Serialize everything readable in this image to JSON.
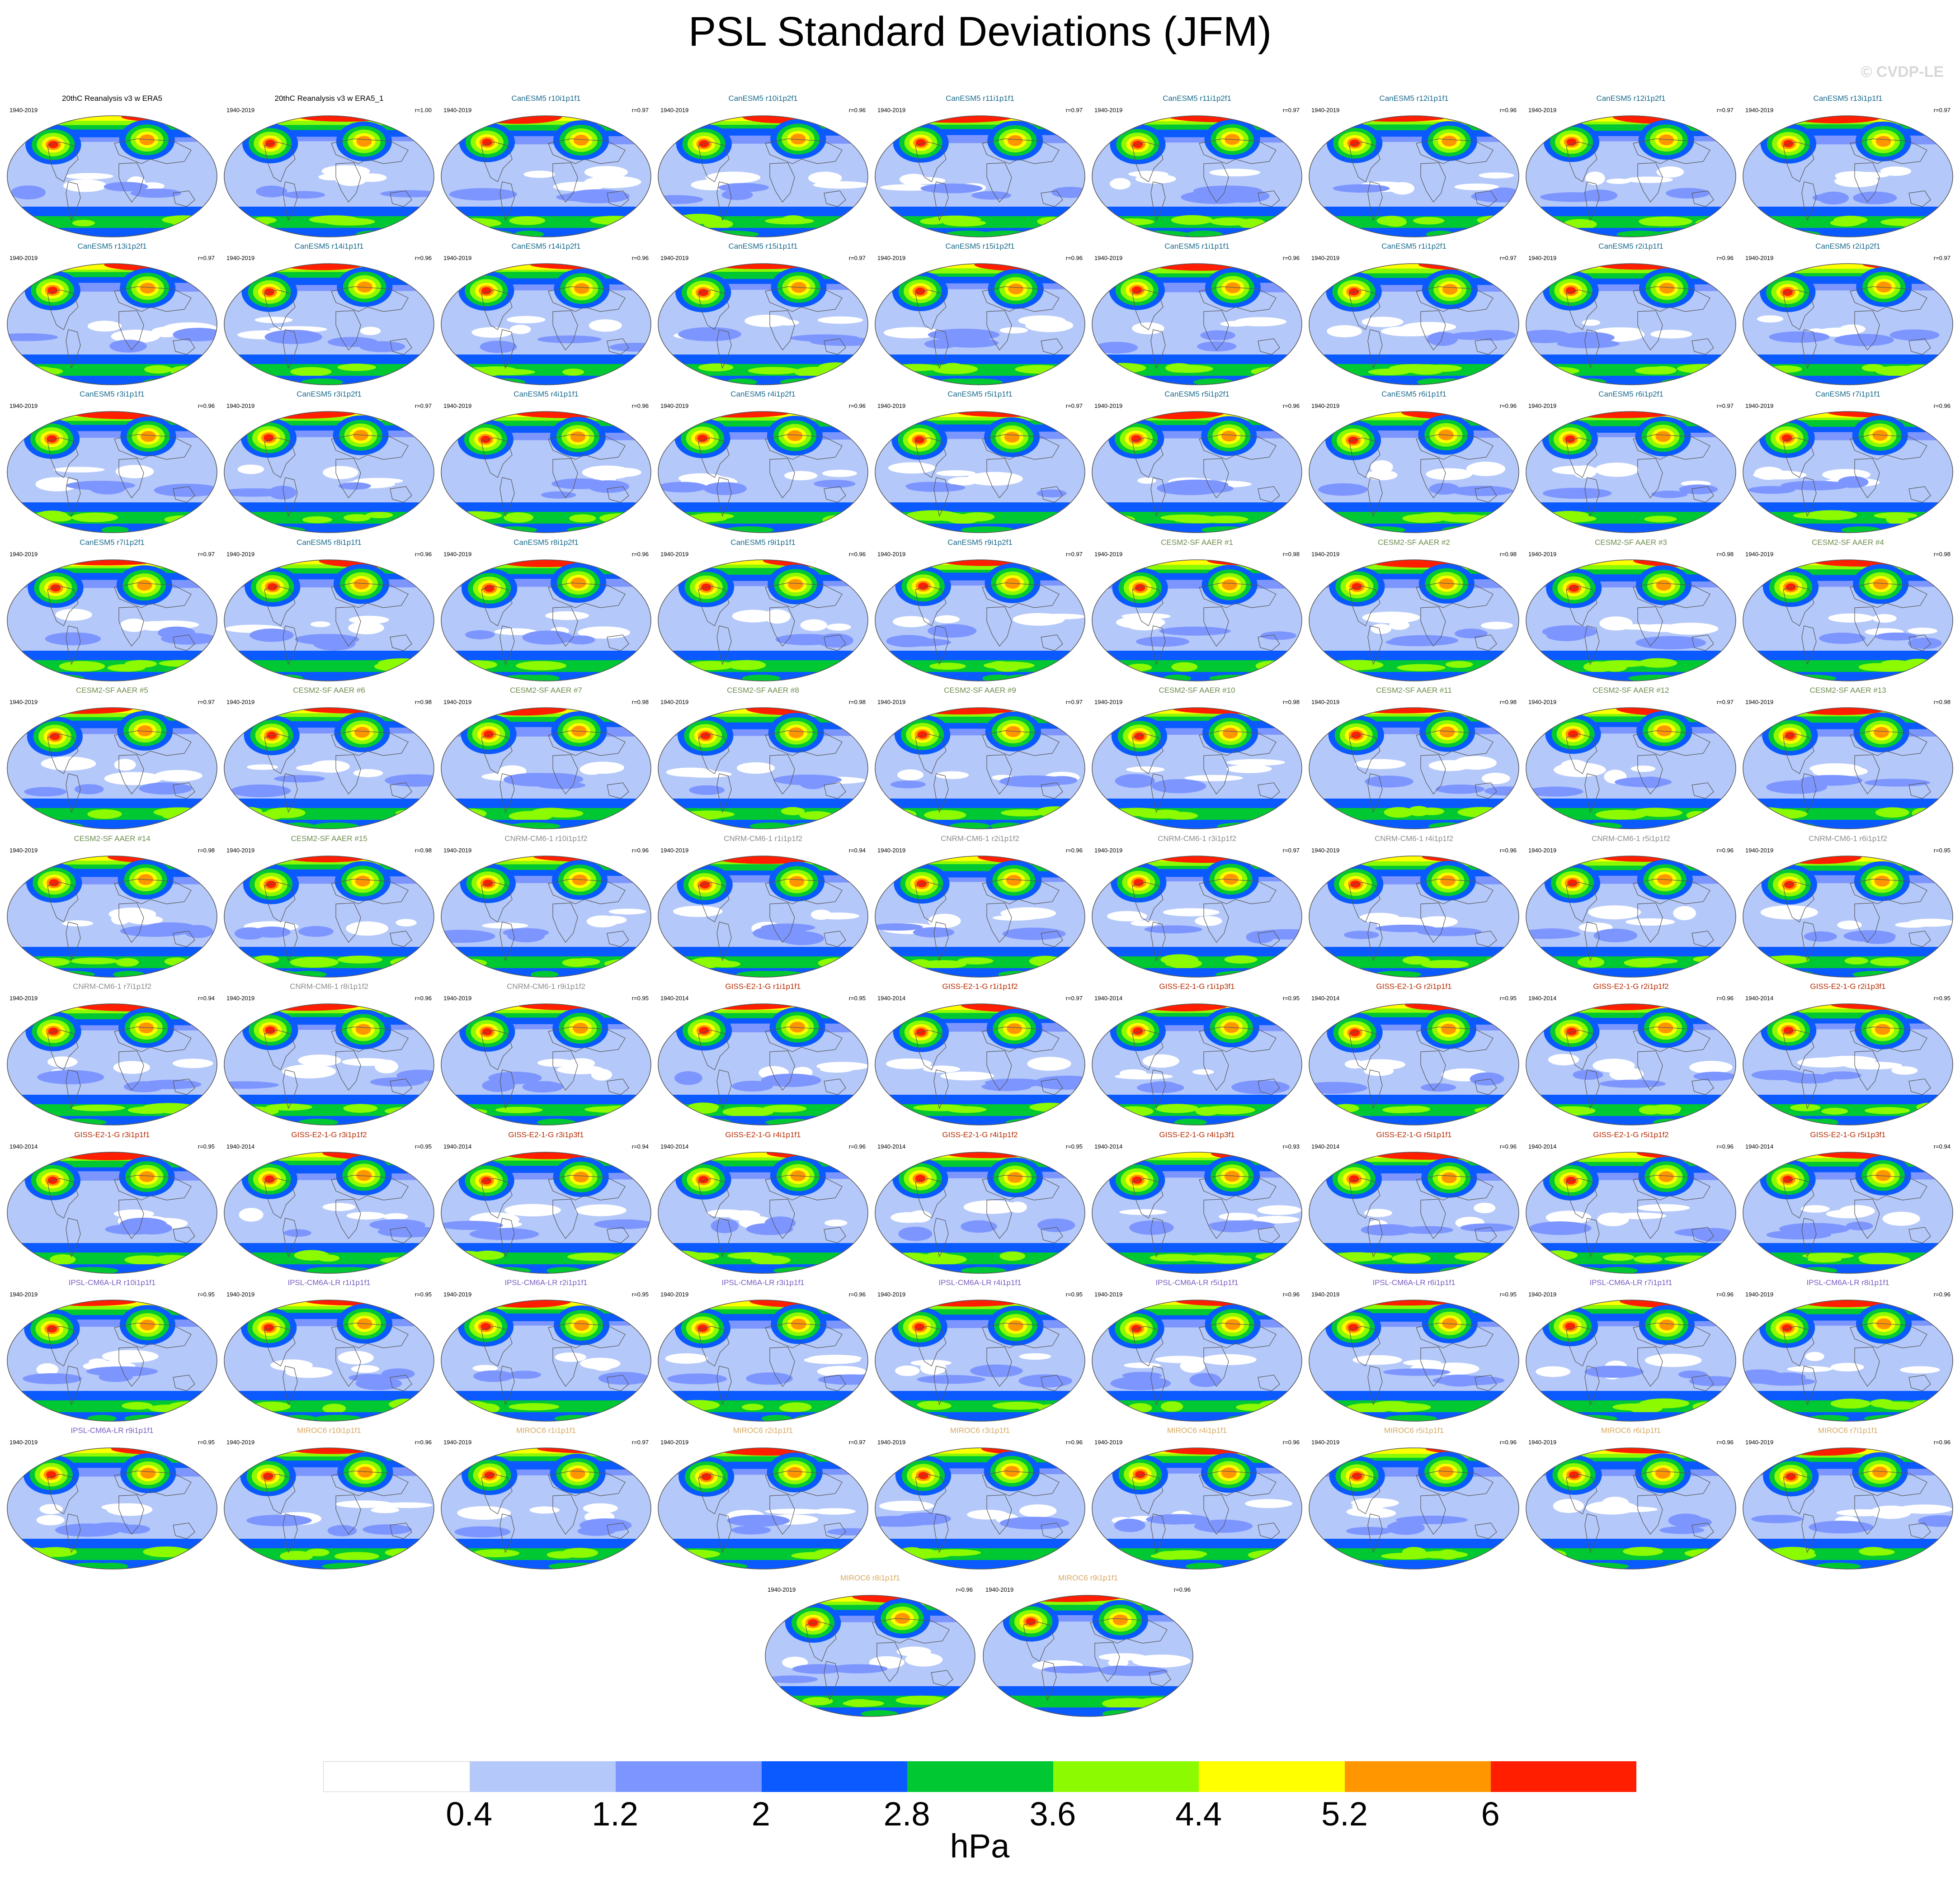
{
  "title": "PSL Standard Deviations (JFM)",
  "watermark": "© CVDP-LE",
  "units": "hPa",
  "colors": {
    "legend": [
      "#ffffff",
      "#b4c8fa",
      "#7d96ff",
      "#0a5aff",
      "#00c832",
      "#8cfa00",
      "#ffff00",
      "#ff9600",
      "#ff1e00"
    ],
    "land_outline": "#555555",
    "globe_outline": "#555555",
    "group_titles": {
      "obs": "#000000",
      "CanESM5": "#1a6a8c",
      "CESM2-SF AAER": "#6c8c4c",
      "CNRM-CM6-1": "#8c8c8c",
      "GISS-E2-1-G": "#b42a00",
      "IPSL-CM6A-LR": "#7a5cc0",
      "MIROC6": "#d8a860"
    }
  },
  "colorbar": {
    "levels": [
      "0.4",
      "1.2",
      "2",
      "2.8",
      "3.6",
      "4.4",
      "5.2",
      "6"
    ]
  },
  "panels": [
    {
      "title": "20thC Reanalysis v3 w ERA5",
      "group": "obs",
      "years": "1940-2019",
      "corr": ""
    },
    {
      "title": "20thC Reanalysis v3 w ERA5_1",
      "group": "obs",
      "years": "1940-2019",
      "corr": "r=1.00"
    },
    {
      "title": "CanESM5 r10i1p1f1",
      "group": "CanESM5",
      "years": "1940-2019",
      "corr": "r=0.97"
    },
    {
      "title": "CanESM5 r10i1p2f1",
      "group": "CanESM5",
      "years": "1940-2019",
      "corr": "r=0.96"
    },
    {
      "title": "CanESM5 r11i1p1f1",
      "group": "CanESM5",
      "years": "1940-2019",
      "corr": "r=0.97"
    },
    {
      "title": "CanESM5 r11i1p2f1",
      "group": "CanESM5",
      "years": "1940-2019",
      "corr": "r=0.97"
    },
    {
      "title": "CanESM5 r12i1p1f1",
      "group": "CanESM5",
      "years": "1940-2019",
      "corr": "r=0.96"
    },
    {
      "title": "CanESM5 r12i1p2f1",
      "group": "CanESM5",
      "years": "1940-2019",
      "corr": "r=0.97"
    },
    {
      "title": "CanESM5 r13i1p1f1",
      "group": "CanESM5",
      "years": "1940-2019",
      "corr": "r=0.97"
    },
    {
      "title": "CanESM5 r13i1p2f1",
      "group": "CanESM5",
      "years": "1940-2019",
      "corr": "r=0.97"
    },
    {
      "title": "CanESM5 r14i1p1f1",
      "group": "CanESM5",
      "years": "1940-2019",
      "corr": "r=0.96"
    },
    {
      "title": "CanESM5 r14i1p2f1",
      "group": "CanESM5",
      "years": "1940-2019",
      "corr": "r=0.96"
    },
    {
      "title": "CanESM5 r15i1p1f1",
      "group": "CanESM5",
      "years": "1940-2019",
      "corr": "r=0.97"
    },
    {
      "title": "CanESM5 r15i1p2f1",
      "group": "CanESM5",
      "years": "1940-2019",
      "corr": "r=0.96"
    },
    {
      "title": "CanESM5 r1i1p1f1",
      "group": "CanESM5",
      "years": "1940-2019",
      "corr": "r=0.96"
    },
    {
      "title": "CanESM5 r1i1p2f1",
      "group": "CanESM5",
      "years": "1940-2019",
      "corr": "r=0.97"
    },
    {
      "title": "CanESM5 r2i1p1f1",
      "group": "CanESM5",
      "years": "1940-2019",
      "corr": "r=0.96"
    },
    {
      "title": "CanESM5 r2i1p2f1",
      "group": "CanESM5",
      "years": "1940-2019",
      "corr": "r=0.97"
    },
    {
      "title": "CanESM5 r3i1p1f1",
      "group": "CanESM5",
      "years": "1940-2019",
      "corr": "r=0.96"
    },
    {
      "title": "CanESM5 r3i1p2f1",
      "group": "CanESM5",
      "years": "1940-2019",
      "corr": "r=0.97"
    },
    {
      "title": "CanESM5 r4i1p1f1",
      "group": "CanESM5",
      "years": "1940-2019",
      "corr": "r=0.96"
    },
    {
      "title": "CanESM5 r4i1p2f1",
      "group": "CanESM5",
      "years": "1940-2019",
      "corr": "r=0.96"
    },
    {
      "title": "CanESM5 r5i1p1f1",
      "group": "CanESM5",
      "years": "1940-2019",
      "corr": "r=0.97"
    },
    {
      "title": "CanESM5 r5i1p2f1",
      "group": "CanESM5",
      "years": "1940-2019",
      "corr": "r=0.96"
    },
    {
      "title": "CanESM5 r6i1p1f1",
      "group": "CanESM5",
      "years": "1940-2019",
      "corr": "r=0.96"
    },
    {
      "title": "CanESM5 r6i1p2f1",
      "group": "CanESM5",
      "years": "1940-2019",
      "corr": "r=0.97"
    },
    {
      "title": "CanESM5 r7i1p1f1",
      "group": "CanESM5",
      "years": "1940-2019",
      "corr": "r=0.96"
    },
    {
      "title": "CanESM5 r7i1p2f1",
      "group": "CanESM5",
      "years": "1940-2019",
      "corr": "r=0.97"
    },
    {
      "title": "CanESM5 r8i1p1f1",
      "group": "CanESM5",
      "years": "1940-2019",
      "corr": "r=0.96"
    },
    {
      "title": "CanESM5 r8i1p2f1",
      "group": "CanESM5",
      "years": "1940-2019",
      "corr": "r=0.96"
    },
    {
      "title": "CanESM5 r9i1p1f1",
      "group": "CanESM5",
      "years": "1940-2019",
      "corr": "r=0.96"
    },
    {
      "title": "CanESM5 r9i1p2f1",
      "group": "CanESM5",
      "years": "1940-2019",
      "corr": "r=0.97"
    },
    {
      "title": "CESM2-SF AAER #1",
      "group": "CESM2-SF AAER",
      "years": "1940-2019",
      "corr": "r=0.98"
    },
    {
      "title": "CESM2-SF AAER #2",
      "group": "CESM2-SF AAER",
      "years": "1940-2019",
      "corr": "r=0.98"
    },
    {
      "title": "CESM2-SF AAER #3",
      "group": "CESM2-SF AAER",
      "years": "1940-2019",
      "corr": "r=0.98"
    },
    {
      "title": "CESM2-SF AAER #4",
      "group": "CESM2-SF AAER",
      "years": "1940-2019",
      "corr": "r=0.98"
    },
    {
      "title": "CESM2-SF AAER #5",
      "group": "CESM2-SF AAER",
      "years": "1940-2019",
      "corr": "r=0.97"
    },
    {
      "title": "CESM2-SF AAER #6",
      "group": "CESM2-SF AAER",
      "years": "1940-2019",
      "corr": "r=0.98"
    },
    {
      "title": "CESM2-SF AAER #7",
      "group": "CESM2-SF AAER",
      "years": "1940-2019",
      "corr": "r=0.98"
    },
    {
      "title": "CESM2-SF AAER #8",
      "group": "CESM2-SF AAER",
      "years": "1940-2019",
      "corr": "r=0.98"
    },
    {
      "title": "CESM2-SF AAER #9",
      "group": "CESM2-SF AAER",
      "years": "1940-2019",
      "corr": "r=0.97"
    },
    {
      "title": "CESM2-SF AAER #10",
      "group": "CESM2-SF AAER",
      "years": "1940-2019",
      "corr": "r=0.98"
    },
    {
      "title": "CESM2-SF AAER #11",
      "group": "CESM2-SF AAER",
      "years": "1940-2019",
      "corr": "r=0.98"
    },
    {
      "title": "CESM2-SF AAER #12",
      "group": "CESM2-SF AAER",
      "years": "1940-2019",
      "corr": "r=0.97"
    },
    {
      "title": "CESM2-SF AAER #13",
      "group": "CESM2-SF AAER",
      "years": "1940-2019",
      "corr": "r=0.98"
    },
    {
      "title": "CESM2-SF AAER #14",
      "group": "CESM2-SF AAER",
      "years": "1940-2019",
      "corr": "r=0.98"
    },
    {
      "title": "CESM2-SF AAER #15",
      "group": "CESM2-SF AAER",
      "years": "1940-2019",
      "corr": "r=0.98"
    },
    {
      "title": "CNRM-CM6-1 r10i1p1f2",
      "group": "CNRM-CM6-1",
      "years": "1940-2019",
      "corr": "r=0.96"
    },
    {
      "title": "CNRM-CM6-1 r1i1p1f2",
      "group": "CNRM-CM6-1",
      "years": "1940-2019",
      "corr": "r=0.94"
    },
    {
      "title": "CNRM-CM6-1 r2i1p1f2",
      "group": "CNRM-CM6-1",
      "years": "1940-2019",
      "corr": "r=0.96"
    },
    {
      "title": "CNRM-CM6-1 r3i1p1f2",
      "group": "CNRM-CM6-1",
      "years": "1940-2019",
      "corr": "r=0.97"
    },
    {
      "title": "CNRM-CM6-1 r4i1p1f2",
      "group": "CNRM-CM6-1",
      "years": "1940-2019",
      "corr": "r=0.96"
    },
    {
      "title": "CNRM-CM6-1 r5i1p1f2",
      "group": "CNRM-CM6-1",
      "years": "1940-2019",
      "corr": "r=0.96"
    },
    {
      "title": "CNRM-CM6-1 r6i1p1f2",
      "group": "CNRM-CM6-1",
      "years": "1940-2019",
      "corr": "r=0.95"
    },
    {
      "title": "CNRM-CM6-1 r7i1p1f2",
      "group": "CNRM-CM6-1",
      "years": "1940-2019",
      "corr": "r=0.94"
    },
    {
      "title": "CNRM-CM6-1 r8i1p1f2",
      "group": "CNRM-CM6-1",
      "years": "1940-2019",
      "corr": "r=0.96"
    },
    {
      "title": "CNRM-CM6-1 r9i1p1f2",
      "group": "CNRM-CM6-1",
      "years": "1940-2019",
      "corr": "r=0.95"
    },
    {
      "title": "GISS-E2-1-G r1i1p1f1",
      "group": "GISS-E2-1-G",
      "years": "1940-2014",
      "corr": "r=0.95"
    },
    {
      "title": "GISS-E2-1-G r1i1p1f2",
      "group": "GISS-E2-1-G",
      "years": "1940-2014",
      "corr": "r=0.97"
    },
    {
      "title": "GISS-E2-1-G r1i1p3f1",
      "group": "GISS-E2-1-G",
      "years": "1940-2014",
      "corr": "r=0.95"
    },
    {
      "title": "GISS-E2-1-G r2i1p1f1",
      "group": "GISS-E2-1-G",
      "years": "1940-2014",
      "corr": "r=0.95"
    },
    {
      "title": "GISS-E2-1-G r2i1p1f2",
      "group": "GISS-E2-1-G",
      "years": "1940-2014",
      "corr": "r=0.96"
    },
    {
      "title": "GISS-E2-1-G r2i1p3f1",
      "group": "GISS-E2-1-G",
      "years": "1940-2014",
      "corr": "r=0.95"
    },
    {
      "title": "GISS-E2-1-G r3i1p1f1",
      "group": "GISS-E2-1-G",
      "years": "1940-2014",
      "corr": "r=0.95"
    },
    {
      "title": "GISS-E2-1-G r3i1p1f2",
      "group": "GISS-E2-1-G",
      "years": "1940-2014",
      "corr": "r=0.95"
    },
    {
      "title": "GISS-E2-1-G r3i1p3f1",
      "group": "GISS-E2-1-G",
      "years": "1940-2014",
      "corr": "r=0.94"
    },
    {
      "title": "GISS-E2-1-G r4i1p1f1",
      "group": "GISS-E2-1-G",
      "years": "1940-2014",
      "corr": "r=0.96"
    },
    {
      "title": "GISS-E2-1-G r4i1p1f2",
      "group": "GISS-E2-1-G",
      "years": "1940-2014",
      "corr": "r=0.95"
    },
    {
      "title": "GISS-E2-1-G r4i1p3f1",
      "group": "GISS-E2-1-G",
      "years": "1940-2014",
      "corr": "r=0.93"
    },
    {
      "title": "GISS-E2-1-G r5i1p1f1",
      "group": "GISS-E2-1-G",
      "years": "1940-2014",
      "corr": "r=0.96"
    },
    {
      "title": "GISS-E2-1-G r5i1p1f2",
      "group": "GISS-E2-1-G",
      "years": "1940-2014",
      "corr": "r=0.96"
    },
    {
      "title": "GISS-E2-1-G r5i1p3f1",
      "group": "GISS-E2-1-G",
      "years": "1940-2014",
      "corr": "r=0.94"
    },
    {
      "title": "IPSL-CM6A-LR r10i1p1f1",
      "group": "IPSL-CM6A-LR",
      "years": "1940-2019",
      "corr": "r=0.95"
    },
    {
      "title": "IPSL-CM6A-LR r1i1p1f1",
      "group": "IPSL-CM6A-LR",
      "years": "1940-2019",
      "corr": "r=0.95"
    },
    {
      "title": "IPSL-CM6A-LR r2i1p1f1",
      "group": "IPSL-CM6A-LR",
      "years": "1940-2019",
      "corr": "r=0.95"
    },
    {
      "title": "IPSL-CM6A-LR r3i1p1f1",
      "group": "IPSL-CM6A-LR",
      "years": "1940-2019",
      "corr": "r=0.96"
    },
    {
      "title": "IPSL-CM6A-LR r4i1p1f1",
      "group": "IPSL-CM6A-LR",
      "years": "1940-2019",
      "corr": "r=0.95"
    },
    {
      "title": "IPSL-CM6A-LR r5i1p1f1",
      "group": "IPSL-CM6A-LR",
      "years": "1940-2019",
      "corr": "r=0.96"
    },
    {
      "title": "IPSL-CM6A-LR r6i1p1f1",
      "group": "IPSL-CM6A-LR",
      "years": "1940-2019",
      "corr": "r=0.95"
    },
    {
      "title": "IPSL-CM6A-LR r7i1p1f1",
      "group": "IPSL-CM6A-LR",
      "years": "1940-2019",
      "corr": "r=0.96"
    },
    {
      "title": "IPSL-CM6A-LR r8i1p1f1",
      "group": "IPSL-CM6A-LR",
      "years": "1940-2019",
      "corr": "r=0.96"
    },
    {
      "title": "IPSL-CM6A-LR r9i1p1f1",
      "group": "IPSL-CM6A-LR",
      "years": "1940-2019",
      "corr": "r=0.95"
    },
    {
      "title": "MIROC6 r10i1p1f1",
      "group": "MIROC6",
      "years": "1940-2019",
      "corr": "r=0.96"
    },
    {
      "title": "MIROC6 r1i1p1f1",
      "group": "MIROC6",
      "years": "1940-2019",
      "corr": "r=0.97"
    },
    {
      "title": "MIROC6 r2i1p1f1",
      "group": "MIROC6",
      "years": "1940-2019",
      "corr": "r=0.97"
    },
    {
      "title": "MIROC6 r3i1p1f1",
      "group": "MIROC6",
      "years": "1940-2019",
      "corr": "r=0.96"
    },
    {
      "title": "MIROC6 r4i1p1f1",
      "group": "MIROC6",
      "years": "1940-2019",
      "corr": "r=0.96"
    },
    {
      "title": "MIROC6 r5i1p1f1",
      "group": "MIROC6",
      "years": "1940-2019",
      "corr": "r=0.96"
    },
    {
      "title": "MIROC6 r6i1p1f1",
      "group": "MIROC6",
      "years": "1940-2019",
      "corr": "r=0.96"
    },
    {
      "title": "MIROC6 r7i1p1f1",
      "group": "MIROC6",
      "years": "1940-2019",
      "corr": "r=0.96"
    },
    {
      "title": "MIROC6 r8i1p1f1",
      "group": "MIROC6",
      "years": "1940-2019",
      "corr": "r=0.96"
    },
    {
      "title": "MIROC6 r9i1p1f1",
      "group": "MIROC6",
      "years": "1940-2019",
      "corr": "r=0.96"
    }
  ]
}
